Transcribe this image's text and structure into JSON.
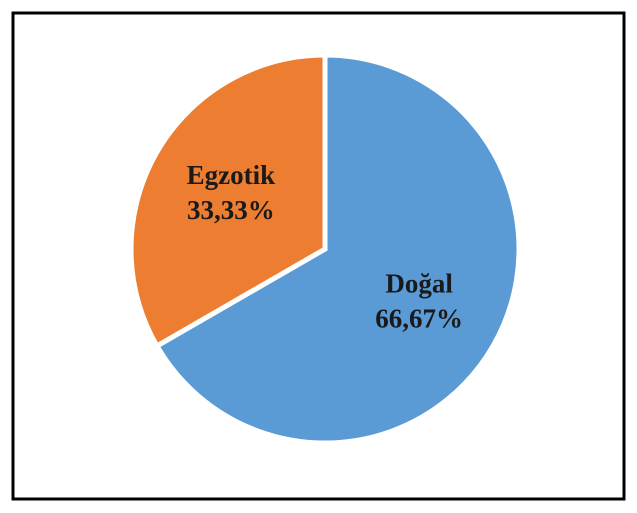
{
  "chart_data": {
    "type": "pie",
    "categories": [
      "Doğal",
      "Egzotik"
    ],
    "values": [
      66.67,
      33.33
    ],
    "value_labels": [
      "66,67%",
      "33,33%"
    ],
    "colors": [
      "#5b9bd5",
      "#ed7d31"
    ]
  }
}
